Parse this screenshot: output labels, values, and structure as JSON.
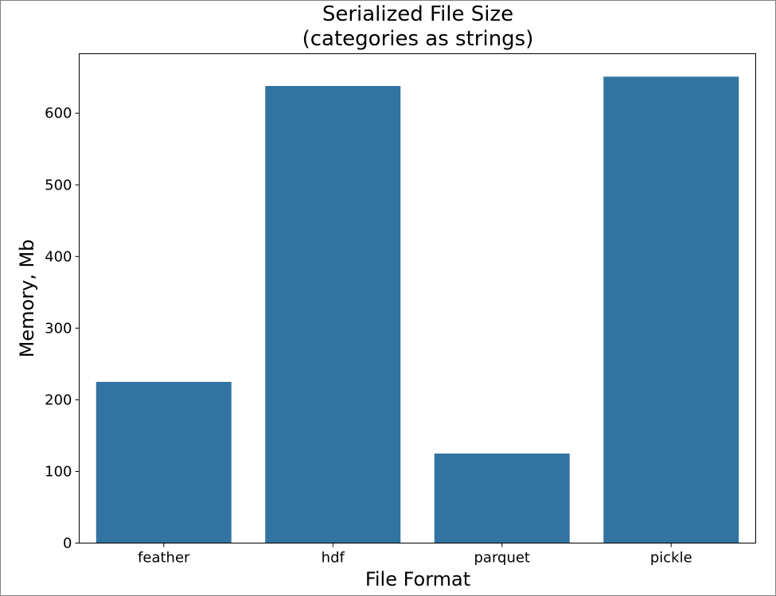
{
  "chart_data": {
    "type": "bar",
    "title_lines": [
      "Serialized File Size",
      "(categories as strings)"
    ],
    "xlabel": "File Format",
    "ylabel": "Memory, Mb",
    "categories": [
      "feather",
      "hdf",
      "parquet",
      "pickle"
    ],
    "values": [
      225,
      638,
      125,
      651
    ],
    "yticks": [
      0,
      100,
      200,
      300,
      400,
      500,
      600
    ],
    "ylim": [
      0,
      683
    ],
    "grid": false,
    "legend": "none",
    "bar_color": "#3274a1"
  }
}
